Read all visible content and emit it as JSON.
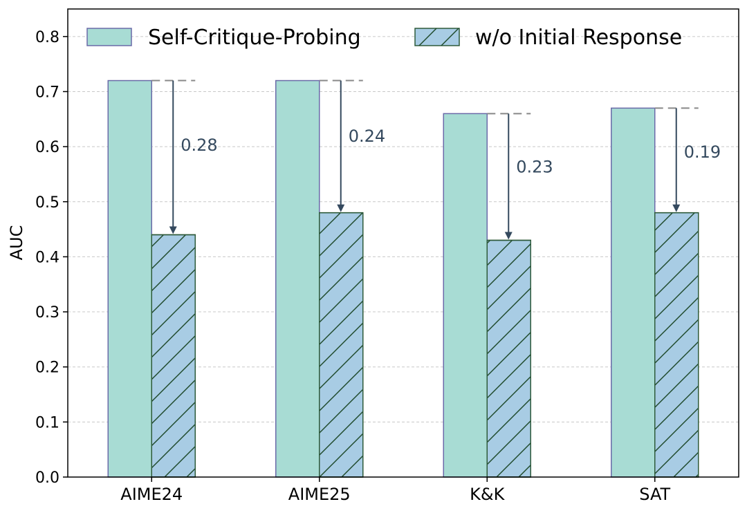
{
  "chart_data": {
    "type": "bar",
    "title": "",
    "xlabel": "",
    "ylabel": "AUC",
    "ylim": [
      0,
      0.85
    ],
    "yticks": [
      "0.0",
      "0.1",
      "0.2",
      "0.3",
      "0.4",
      "0.5",
      "0.6",
      "0.7",
      "0.8"
    ],
    "grid": true,
    "legend_position": "top",
    "categories": [
      "AIME24",
      "AIME25",
      "K&K",
      "SAT"
    ],
    "series": [
      {
        "name": "Self-Critique-Probing",
        "values": [
          0.72,
          0.72,
          0.66,
          0.67
        ],
        "fill": "#a8dcd4",
        "edge": "#6a6aa8",
        "hatch": false
      },
      {
        "name": "w/o Initial Response",
        "values": [
          0.44,
          0.48,
          0.43,
          0.48
        ],
        "fill": "#a8cce4",
        "edge": "#2e5a3a",
        "hatch": true
      }
    ],
    "annotations": [
      {
        "category": "AIME24",
        "label": "0.28"
      },
      {
        "category": "AIME25",
        "label": "0.24"
      },
      {
        "category": "K&K",
        "label": "0.23"
      },
      {
        "category": "SAT",
        "label": "0.19"
      }
    ],
    "annotation_color": "#34495e",
    "reference_line_color": "#888888"
  }
}
